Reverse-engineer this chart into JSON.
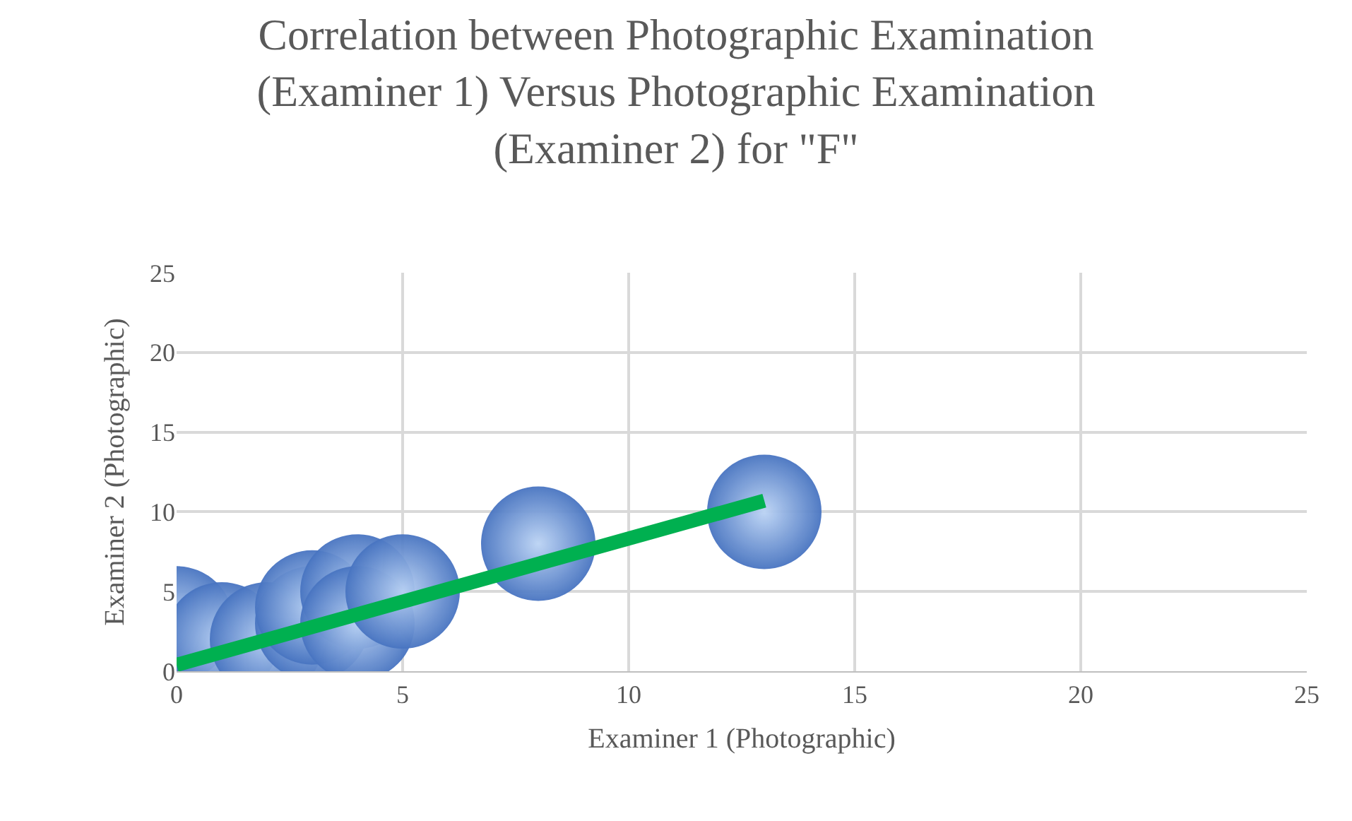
{
  "chart_data": {
    "type": "bubble",
    "title": "Correlation between Photographic Examination (Examiner 1) Versus Photographic Examination (Examiner 2) for \"F\"",
    "xlabel": "Examiner 1 (Photographic)",
    "ylabel": "Examiner 2 (Photographic)",
    "xlim": [
      0,
      25
    ],
    "xticks": [
      0,
      5,
      10,
      15,
      20,
      25
    ],
    "ylim": [
      0,
      25
    ],
    "yticks": [
      0,
      5,
      10,
      15,
      20,
      25
    ],
    "grid": true,
    "series": [
      {
        "color": "#4a76c2",
        "x": [
          0,
          1,
          2,
          3,
          3,
          4,
          4,
          5,
          8,
          13
        ],
        "values": [
          3,
          2,
          2,
          3,
          4,
          5,
          3,
          5,
          8,
          10
        ],
        "sizes": [
          1,
          1,
          1,
          1,
          1,
          1,
          1,
          1,
          1,
          1
        ]
      },
      {
        "type": "line",
        "color": "#00b050",
        "x": [
          0,
          13
        ],
        "values": [
          0.4,
          10.7
        ]
      }
    ]
  }
}
